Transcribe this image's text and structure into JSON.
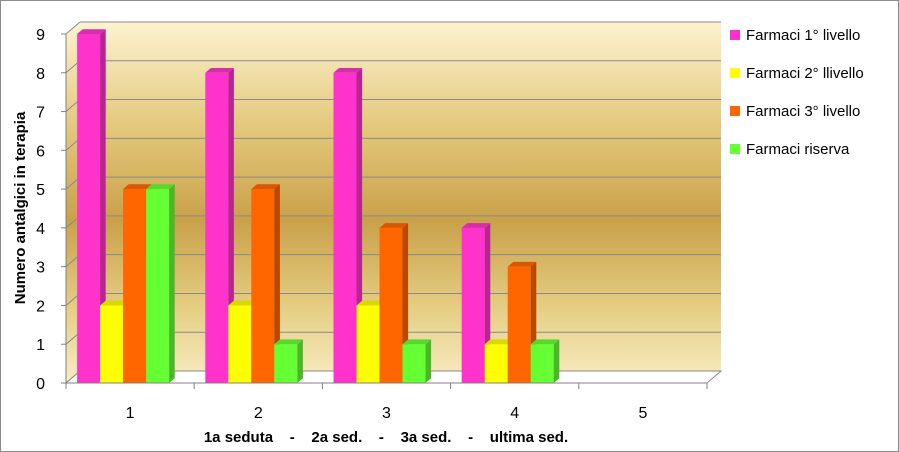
{
  "chart_data": {
    "type": "bar",
    "categories": [
      "1",
      "2",
      "3",
      "4",
      "5"
    ],
    "series": [
      {
        "name": "Farmaci 1° livello",
        "color": "#ff33cc",
        "values": [
          9,
          8,
          8,
          4,
          null
        ]
      },
      {
        "name": "Farmaci 2° llivello",
        "color": "#ffff00",
        "values": [
          2,
          2,
          2,
          1,
          null
        ]
      },
      {
        "name": "Farmaci 3° livello",
        "color": "#ff6600",
        "values": [
          5,
          5,
          4,
          3,
          null
        ]
      },
      {
        "name": "Farmaci riserva",
        "color": "#66ff33",
        "values": [
          5,
          1,
          1,
          1,
          null
        ]
      }
    ],
    "xlabel": "1a seduta    -    2a sed.    -    3a sed.    -    ultima sed.",
    "ylabel": "Numero antalgici in terapia",
    "ylim": [
      0,
      9
    ],
    "yticks": [
      "0",
      "1",
      "2",
      "3",
      "4",
      "5",
      "6",
      "7",
      "8",
      "9"
    ],
    "grid": true,
    "legend_position": "right",
    "background_color": "#e6cf82"
  }
}
